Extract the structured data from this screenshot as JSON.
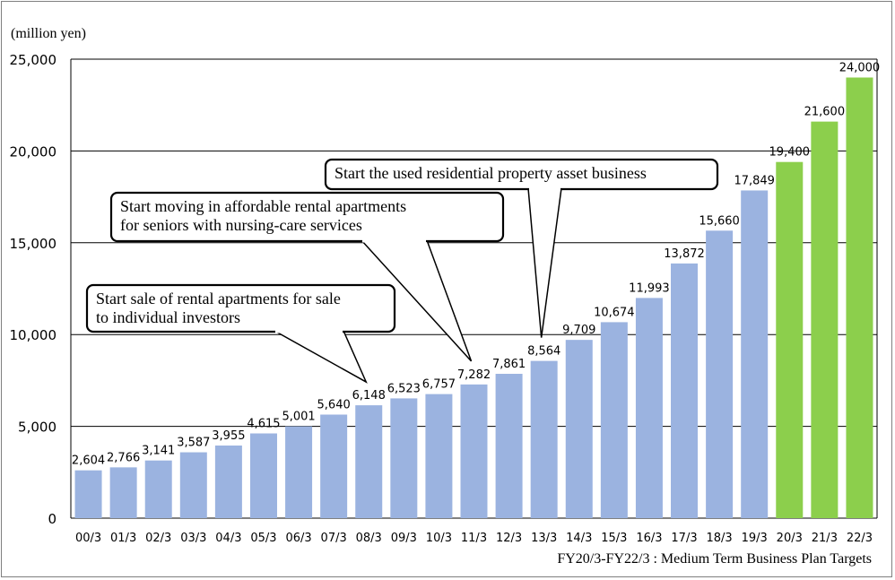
{
  "chart_data": {
    "type": "bar",
    "title": "",
    "unit_label": "(million yen)",
    "xlabel": "",
    "ylabel": "",
    "ylim": [
      0,
      25000
    ],
    "yticks": [
      0,
      5000,
      10000,
      15000,
      20000,
      25000
    ],
    "ytick_labels": [
      "0",
      "5,000",
      "10,000",
      "15,000",
      "20,000",
      "25,000"
    ],
    "grid": true,
    "categories": [
      "00/3",
      "01/3",
      "02/3",
      "03/3",
      "04/3",
      "05/3",
      "06/3",
      "07/3",
      "08/3",
      "09/3",
      "10/3",
      "11/3",
      "12/3",
      "13/3",
      "14/3",
      "15/3",
      "16/3",
      "17/3",
      "18/3",
      "19/3",
      "20/3",
      "21/3",
      "22/3"
    ],
    "values": [
      2604,
      2766,
      3141,
      3587,
      3955,
      4615,
      5001,
      5640,
      6148,
      6523,
      6757,
      7282,
      7861,
      8564,
      9709,
      10674,
      11993,
      13872,
      15660,
      17849,
      19400,
      21600,
      24000
    ],
    "value_labels": [
      "2,604",
      "2,766",
      "3,141",
      "3,587",
      "3,955",
      "4,615",
      "5,001",
      "5,640",
      "6,148",
      "6,523",
      "6,757",
      "7,282",
      "7,861",
      "8,564",
      "9,709",
      "10,674",
      "11,993",
      "13,872",
      "15,660",
      "17,849",
      "19,400",
      "21,600",
      "24,000"
    ],
    "colors": {
      "actual": "#9bb3e0",
      "target": "#8ccf4c",
      "target_from_index": 20
    },
    "footnote": "FY20/3-FY22/3 : Medium Term Business Plan Targets",
    "annotations": [
      {
        "lines": [
          "Start the used residential property asset business"
        ],
        "target_category": "13/3"
      },
      {
        "lines": [
          "Start moving in affordable rental apartments",
          "for seniors with nursing-care services"
        ],
        "target_category": "11/3"
      },
      {
        "lines": [
          "Start sale of rental apartments for sale",
          "to individual investors"
        ],
        "target_category": "08/3"
      }
    ]
  }
}
